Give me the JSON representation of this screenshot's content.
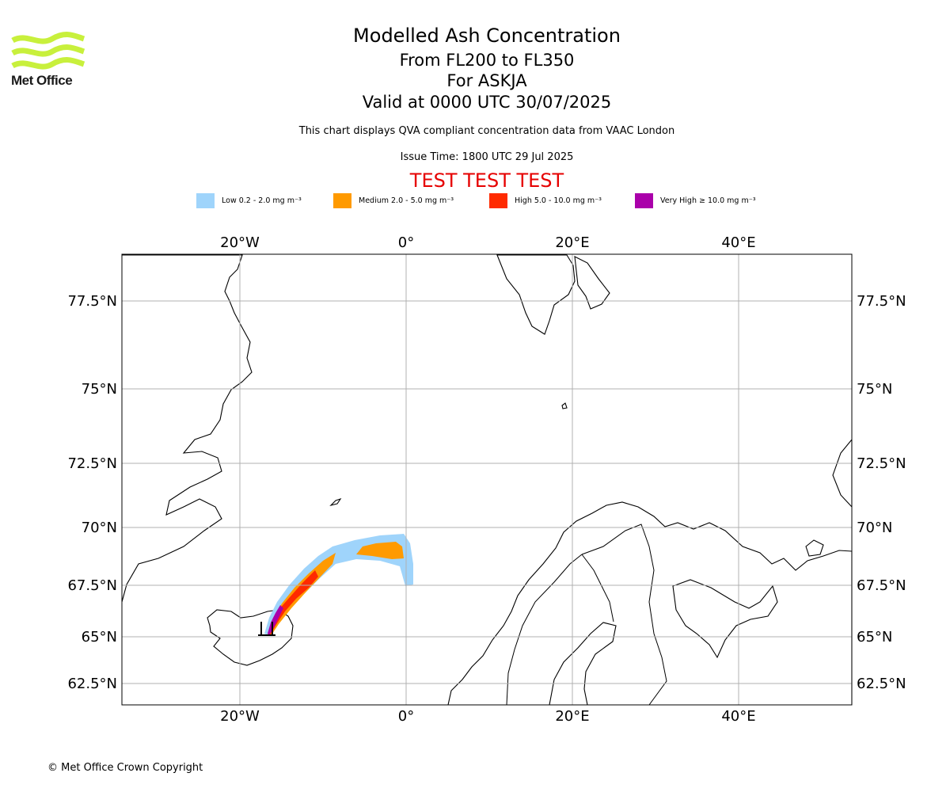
{
  "header": {
    "title": "Modelled Ash Concentration",
    "level_range": "From FL200 to FL350",
    "volcano": "For ASKJA",
    "valid_time": "Valid at 0000 UTC 30/07/2025",
    "qva_note": "This chart displays QVA compliant concentration data from VAAC London",
    "issue_time": "Issue Time: 1800 UTC 29 Jul 2025",
    "test_banner": "TEST TEST TEST"
  },
  "logo": {
    "text": "Met Office",
    "color": "#c8f03c"
  },
  "legend": [
    {
      "label": "Low 0.2 - 2.0 mg m⁻³",
      "color": "#9fd4fb"
    },
    {
      "label": "Medium 2.0 - 5.0 mg m⁻³",
      "color": "#ff9a00"
    },
    {
      "label": "High 5.0 - 10.0 mg m⁻³",
      "color": "#ff2a00"
    },
    {
      "label": "Very High  ≥  10.0 mg m⁻³",
      "color": "#aa00aa"
    }
  ],
  "map": {
    "lon_range": [
      -34.3,
      53.5
    ],
    "lat_range": [
      61.6,
      78.8
    ],
    "projection": "Mercator",
    "grid": true,
    "lon_ticks": [
      "20°W",
      "0°",
      "20°E",
      "40°E"
    ],
    "lat_ticks": [
      "77.5°N",
      "75°N",
      "72.5°N",
      "70°N",
      "67.5°N",
      "65°N",
      "62.5°N"
    ]
  },
  "footer": {
    "copyright": "© Met Office Crown Copyright"
  }
}
